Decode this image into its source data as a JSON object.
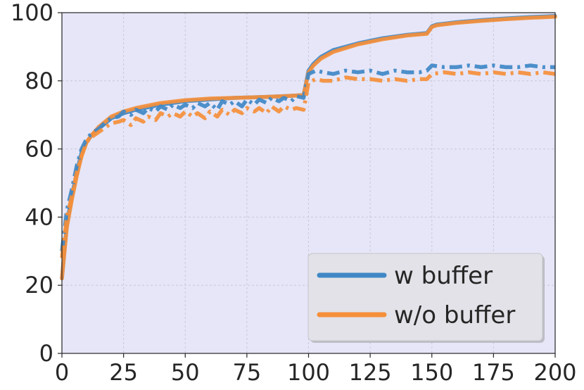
{
  "chart_data": {
    "type": "line",
    "title": "",
    "xlabel": "",
    "ylabel": "",
    "xlim": [
      0,
      200
    ],
    "ylim": [
      0,
      100
    ],
    "xticks": [
      0,
      25,
      50,
      75,
      100,
      125,
      150,
      175,
      200
    ],
    "yticks": [
      0,
      20,
      40,
      60,
      80,
      100
    ],
    "grid": true,
    "background": "#e6e6f8",
    "legend": {
      "position": "lower-right",
      "entries": [
        {
          "label": "w buffer",
          "color": "#3f88c5"
        },
        {
          "label": "w/o buffer",
          "color": "#f58f3a"
        }
      ]
    },
    "series": [
      {
        "name": "w buffer",
        "style": "solid",
        "color": "#3f88c5",
        "x": [
          0,
          2,
          4,
          6,
          8,
          10,
          12,
          15,
          20,
          25,
          30,
          40,
          50,
          60,
          70,
          80,
          90,
          98,
          100,
          102,
          105,
          110,
          120,
          130,
          140,
          148,
          150,
          152,
          160,
          170,
          180,
          190,
          200
        ],
        "y": [
          22,
          38,
          46,
          53,
          59,
          62,
          64,
          66,
          69,
          70.5,
          71.5,
          73,
          74,
          74.5,
          75,
          75.2,
          75.5,
          75.8,
          83,
          85,
          87,
          89,
          91,
          92.5,
          93.5,
          94,
          96,
          96.5,
          97.2,
          97.8,
          98.3,
          98.7,
          99
        ]
      },
      {
        "name": "w/o buffer",
        "style": "solid",
        "color": "#f58f3a",
        "x": [
          0,
          2,
          4,
          6,
          8,
          10,
          12,
          15,
          20,
          25,
          30,
          40,
          50,
          60,
          70,
          80,
          90,
          98,
          100,
          102,
          105,
          110,
          120,
          130,
          140,
          148,
          150,
          152,
          160,
          170,
          180,
          190,
          200
        ],
        "y": [
          22,
          37,
          45,
          52,
          58,
          62,
          64,
          66.5,
          69.5,
          71,
          72,
          73.5,
          74.3,
          74.8,
          75,
          75.2,
          75.5,
          75.8,
          82.5,
          84.5,
          86.5,
          88.5,
          90.7,
          92.2,
          93.3,
          93.8,
          95.8,
          96.3,
          97,
          97.6,
          98.1,
          98.5,
          98.8
        ]
      },
      {
        "name": "",
        "style": "dashdot",
        "color": "#3f88c5",
        "x": [
          0,
          2,
          4,
          6,
          8,
          10,
          12,
          15,
          18,
          20,
          23,
          25,
          28,
          30,
          33,
          35,
          38,
          40,
          43,
          45,
          48,
          50,
          53,
          55,
          58,
          60,
          63,
          65,
          68,
          70,
          73,
          75,
          78,
          80,
          83,
          85,
          88,
          90,
          93,
          95,
          98,
          100,
          103,
          106,
          110,
          115,
          120,
          125,
          130,
          135,
          140,
          145,
          148,
          150,
          155,
          160,
          165,
          170,
          175,
          180,
          185,
          190,
          195,
          200
        ],
        "y": [
          30,
          42,
          48,
          55,
          60,
          63,
          64.5,
          66,
          68,
          69,
          69.5,
          71,
          70,
          71.5,
          70.5,
          72,
          71,
          72.5,
          71.5,
          73,
          72,
          73,
          72,
          73.5,
          72.5,
          73.5,
          71.5,
          74,
          73,
          74,
          72.5,
          74.5,
          73,
          74.5,
          73.5,
          75,
          74,
          75,
          74,
          75.5,
          75,
          82,
          83,
          82.5,
          82,
          83,
          82.5,
          83,
          82,
          83,
          82.5,
          82.5,
          83,
          84.5,
          84,
          84,
          84.5,
          84,
          84.5,
          84,
          84,
          84.5,
          84,
          84
        ]
      },
      {
        "name": "",
        "style": "dashdot",
        "color": "#f58f3a",
        "x": [
          0,
          2,
          4,
          6,
          8,
          10,
          12,
          15,
          18,
          20,
          23,
          25,
          28,
          30,
          33,
          35,
          38,
          40,
          43,
          45,
          48,
          50,
          53,
          55,
          58,
          60,
          63,
          65,
          68,
          70,
          73,
          75,
          78,
          80,
          83,
          85,
          88,
          90,
          93,
          95,
          98,
          100,
          103,
          106,
          110,
          115,
          120,
          125,
          130,
          135,
          140,
          145,
          148,
          150,
          155,
          160,
          165,
          170,
          175,
          180,
          185,
          190,
          195,
          200
        ],
        "y": [
          28,
          40,
          46,
          53,
          58,
          62,
          63.5,
          65,
          66.5,
          67.5,
          68,
          68.5,
          67,
          69,
          68,
          69.5,
          68.5,
          70.5,
          69.5,
          70.5,
          69.5,
          71,
          69.5,
          70.5,
          69,
          71,
          69.5,
          71.5,
          70,
          71.5,
          70.5,
          72,
          71,
          72,
          70.5,
          72.5,
          71,
          72.5,
          71.5,
          72,
          71.5,
          79.5,
          80.5,
          80,
          80,
          81,
          80.5,
          80.5,
          80,
          80.5,
          80,
          80.5,
          80.5,
          82,
          82.5,
          82,
          82.5,
          82,
          82.5,
          82,
          82.5,
          82,
          82.5,
          82
        ]
      }
    ]
  }
}
